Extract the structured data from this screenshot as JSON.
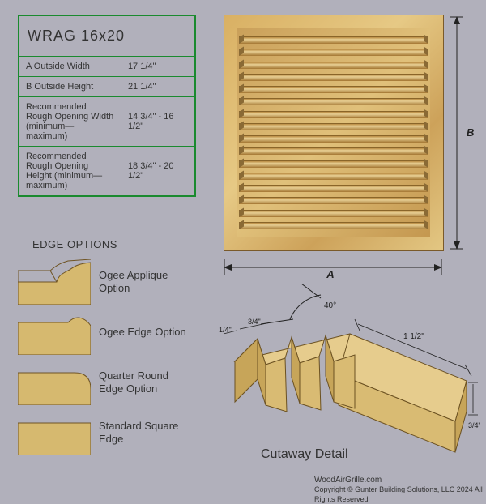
{
  "spec": {
    "title": "WRAG 16x20",
    "rows": [
      {
        "label": "A  Outside Width",
        "value": "17 1/4\""
      },
      {
        "label": "B  Outside Height",
        "value": "21 1/4\""
      },
      {
        "label": "Recommended Rough Opening Width (minimum—maximum)",
        "value": "14 3/4\" - 16 1/2\""
      },
      {
        "label": "Recommended Rough Opening Height (minimum—maximum)",
        "value": "18 3/4\" - 20 1/2\""
      }
    ],
    "border_color": "#1a8a2e"
  },
  "grille": {
    "slat_count": 16,
    "dim_a_label": "A",
    "dim_b_label": "B",
    "wood_fill": "#d9b063",
    "wood_dark": "#a37631"
  },
  "edge_options": {
    "title": "EDGE OPTIONS",
    "items": [
      {
        "label": "Ogee Applique Option",
        "shape": "ogee-applique"
      },
      {
        "label": "Ogee Edge Option",
        "shape": "ogee-edge"
      },
      {
        "label": "Quarter Round Edge Option",
        "shape": "quarter-round"
      },
      {
        "label": "Standard Square Edge",
        "shape": "square"
      }
    ],
    "fill": "#d6b96f",
    "stroke": "#6f5424"
  },
  "cutaway": {
    "label": "Cutaway Detail",
    "angle_label": "40°",
    "dims": {
      "top_spacing1": "1/4\"",
      "top_spacing2": "3/4\"",
      "depth": "1 1/2\"",
      "thickness": "3/4\""
    },
    "wood_top": "#e6cc8d",
    "wood_side": "#c7a559",
    "wood_front": "#d9bb73",
    "stroke": "#6b5122"
  },
  "credit": {
    "site": "WoodAirGrille.com",
    "copyright": "Copyright ©  Gunter Building Solutions, LLC 2024 All Rights Reserved"
  },
  "colors": {
    "page_bg": "#b1b0bb"
  }
}
